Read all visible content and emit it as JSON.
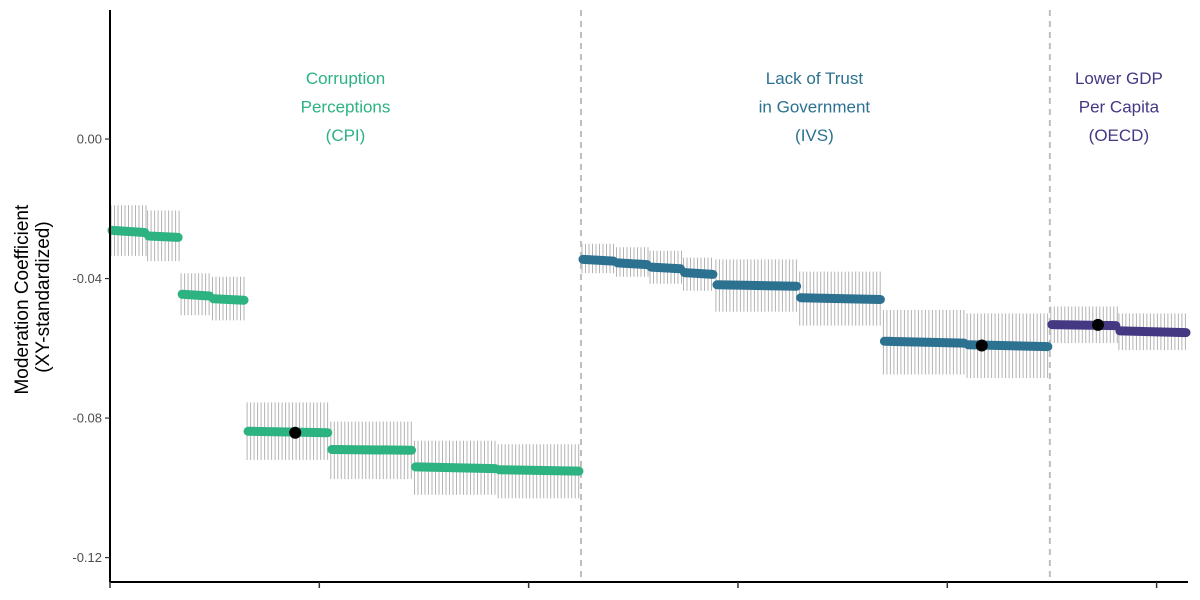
{
  "chart_data": {
    "type": "scatter",
    "title": "",
    "ylabel_lines": [
      "Moderation Coefficient",
      "(XY-standardized)"
    ],
    "xlabel": "",
    "ylim": [
      -0.127,
      0.037
    ],
    "xlim": [
      0,
      1030
    ],
    "y_ticks": [
      0.0,
      -0.04,
      -0.08,
      -0.12
    ],
    "y_tick_labels": [
      "0.00",
      "-0.04",
      "-0.08",
      "-0.12"
    ],
    "x_ticks": [
      0,
      200,
      400,
      600,
      800,
      1000
    ],
    "dividers": [
      450,
      898
    ],
    "grid": false,
    "colors": {
      "cpi": "#2db282",
      "ivs": "#2c7190",
      "oecd": "#453883",
      "ci": "#b3b3b3",
      "divider": "#bfbfbf",
      "highlight": "#000000"
    },
    "groups": [
      {
        "key": "cpi",
        "label_lines": [
          "Corruption",
          "Perceptions",
          "(CPI)"
        ],
        "label_x": 225,
        "segments": [
          {
            "x_start": 0,
            "x_end": 35,
            "y_start": -0.0262,
            "y_end": -0.0268,
            "ci_low": -0.0335,
            "ci_high": -0.019
          },
          {
            "x_start": 35,
            "x_end": 67,
            "y_start": -0.0278,
            "y_end": -0.0282,
            "ci_low": -0.035,
            "ci_high": -0.0205
          },
          {
            "x_start": 67,
            "x_end": 97,
            "y_start": -0.0445,
            "y_end": -0.045,
            "ci_low": -0.0505,
            "ci_high": -0.0385
          },
          {
            "x_start": 97,
            "x_end": 130,
            "y_start": -0.0458,
            "y_end": -0.0462,
            "ci_low": -0.052,
            "ci_high": -0.0395
          },
          {
            "x_start": 130,
            "x_end": 210,
            "y_start": -0.0838,
            "y_end": -0.0842,
            "ci_low": -0.092,
            "ci_high": -0.0755
          },
          {
            "x_start": 210,
            "x_end": 290,
            "y_start": -0.089,
            "y_end": -0.0892,
            "ci_low": -0.0975,
            "ci_high": -0.081
          },
          {
            "x_start": 290,
            "x_end": 370,
            "y_start": -0.094,
            "y_end": -0.0945,
            "ci_low": -0.102,
            "ci_high": -0.0865
          },
          {
            "x_start": 370,
            "x_end": 450,
            "y_start": -0.0948,
            "y_end": -0.0952,
            "ci_low": -0.103,
            "ci_high": -0.0875
          }
        ],
        "highlight": {
          "x": 177,
          "y": -0.0842
        }
      },
      {
        "key": "ivs",
        "label_lines": [
          "Lack of Trust",
          "in Government",
          "(IVS)"
        ],
        "label_x": 673,
        "segments": [
          {
            "x_start": 450,
            "x_end": 483,
            "y_start": -0.0345,
            "y_end": -0.035,
            "ci_low": -0.0385,
            "ci_high": -0.03
          },
          {
            "x_start": 483,
            "x_end": 515,
            "y_start": -0.0355,
            "y_end": -0.036,
            "ci_low": -0.0395,
            "ci_high": -0.031
          },
          {
            "x_start": 515,
            "x_end": 547,
            "y_start": -0.0367,
            "y_end": -0.0372,
            "ci_low": -0.0415,
            "ci_high": -0.032
          },
          {
            "x_start": 547,
            "x_end": 578,
            "y_start": -0.0383,
            "y_end": -0.0388,
            "ci_low": -0.0435,
            "ci_high": -0.034
          },
          {
            "x_start": 578,
            "x_end": 658,
            "y_start": -0.0418,
            "y_end": -0.0422,
            "ci_low": -0.0495,
            "ci_high": -0.0345
          },
          {
            "x_start": 658,
            "x_end": 738,
            "y_start": -0.0455,
            "y_end": -0.046,
            "ci_low": -0.0535,
            "ci_high": -0.038
          },
          {
            "x_start": 738,
            "x_end": 818,
            "y_start": -0.058,
            "y_end": -0.0585,
            "ci_low": -0.0675,
            "ci_high": -0.049
          },
          {
            "x_start": 818,
            "x_end": 898,
            "y_start": -0.059,
            "y_end": -0.0595,
            "ci_low": -0.0685,
            "ci_high": -0.05
          }
        ],
        "highlight": {
          "x": 833,
          "y": -0.0592
        }
      },
      {
        "key": "oecd",
        "label_lines": [
          "Lower GDP",
          "Per Capita",
          "(OECD)"
        ],
        "label_x": 964,
        "segments": [
          {
            "x_start": 898,
            "x_end": 963,
            "y_start": -0.0532,
            "y_end": -0.0535,
            "ci_low": -0.0585,
            "ci_high": -0.048
          },
          {
            "x_start": 963,
            "x_end": 1030,
            "y_start": -0.055,
            "y_end": -0.0555,
            "ci_low": -0.0605,
            "ci_high": -0.05
          }
        ],
        "highlight": {
          "x": 944,
          "y": -0.0533
        }
      }
    ]
  }
}
